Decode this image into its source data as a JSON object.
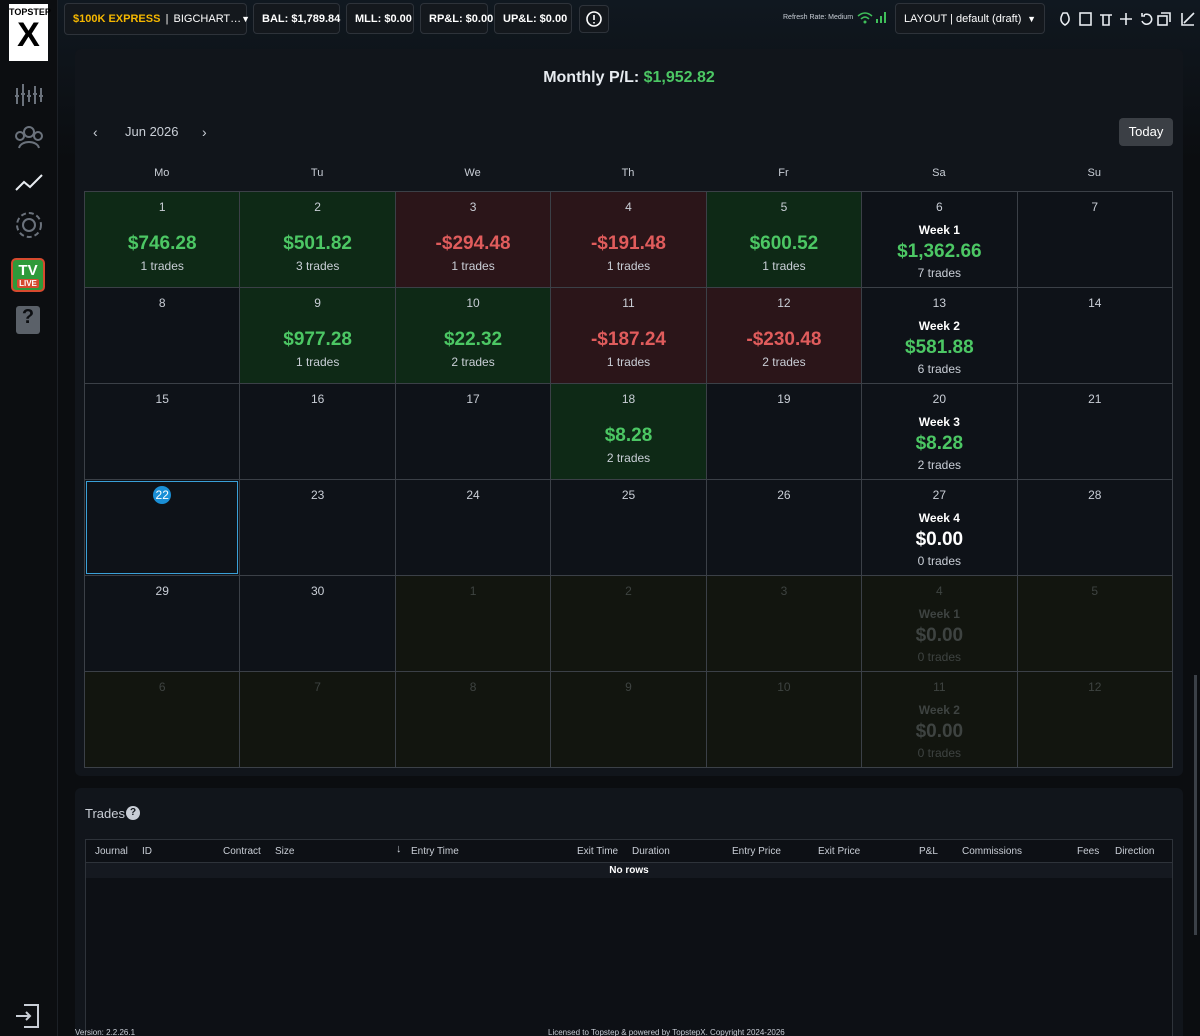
{
  "sidebar": {
    "logo_top": "TOPSTEP",
    "logo_mark": "X",
    "tv": "TV",
    "live": "LIVE"
  },
  "topbar": {
    "account_plan": "$100K EXPRESS",
    "account_name": "BIGCHART…",
    "stats": [
      "BAL: $1,789.84",
      "MLL: $0.00",
      "RP&L: $0.00",
      "UP&L: $0.00"
    ],
    "refresh": "Refresh Rate: Medium",
    "layout": "LAYOUT | default (draft)"
  },
  "calendar": {
    "title_label": "Monthly P/L:",
    "title_value": "$1,952.82",
    "month": "Jun 2026",
    "today_button": "Today",
    "weekdays": [
      "Mo",
      "Tu",
      "We",
      "Th",
      "Fr",
      "Sa",
      "Su"
    ],
    "weeks": [
      [
        {
          "day": "1",
          "pnl": "$746.28",
          "trades": "1 trades"
        },
        {
          "day": "2",
          "pnl": "$501.82",
          "trades": "3 trades"
        },
        {
          "day": "3",
          "pnl": "-$294.48",
          "trades": "1 trades"
        },
        {
          "day": "4",
          "pnl": "-$191.48",
          "trades": "1 trades"
        },
        {
          "day": "5",
          "pnl": "$600.52",
          "trades": "1 trades"
        },
        {
          "day": "6",
          "week": "Week 1",
          "pnl": "$1,362.66",
          "trades": "7 trades"
        },
        {
          "day": "7"
        }
      ],
      [
        {
          "day": "8"
        },
        {
          "day": "9",
          "pnl": "$977.28",
          "trades": "1 trades"
        },
        {
          "day": "10",
          "pnl": "$22.32",
          "trades": "2 trades"
        },
        {
          "day": "11",
          "pnl": "-$187.24",
          "trades": "1 trades"
        },
        {
          "day": "12",
          "pnl": "-$230.48",
          "trades": "2 trades"
        },
        {
          "day": "13",
          "week": "Week 2",
          "pnl": "$581.88",
          "trades": "6 trades"
        },
        {
          "day": "14"
        }
      ],
      [
        {
          "day": "15"
        },
        {
          "day": "16"
        },
        {
          "day": "17"
        },
        {
          "day": "18",
          "pnl": "$8.28",
          "trades": "2 trades"
        },
        {
          "day": "19"
        },
        {
          "day": "20",
          "week": "Week 3",
          "pnl": "$8.28",
          "trades": "2 trades"
        },
        {
          "day": "21"
        }
      ],
      [
        {
          "day": "22"
        },
        {
          "day": "23"
        },
        {
          "day": "24"
        },
        {
          "day": "25"
        },
        {
          "day": "26"
        },
        {
          "day": "27",
          "week": "Week 4",
          "pnl": "$0.00",
          "trades": "0 trades"
        },
        {
          "day": "28"
        }
      ],
      [
        {
          "day": "29"
        },
        {
          "day": "30"
        },
        {
          "day": "1"
        },
        {
          "day": "2"
        },
        {
          "day": "3"
        },
        {
          "day": "4",
          "week": "Week 1",
          "pnl": "$0.00",
          "trades": "0 trades"
        },
        {
          "day": "5"
        }
      ],
      [
        {
          "day": "6"
        },
        {
          "day": "7"
        },
        {
          "day": "8"
        },
        {
          "day": "9"
        },
        {
          "day": "10"
        },
        {
          "day": "11",
          "week": "Week 2",
          "pnl": "$0.00",
          "trades": "0 trades"
        },
        {
          "day": "12"
        }
      ]
    ]
  },
  "trades": {
    "title": "Trades",
    "columns": [
      "Journal",
      "ID",
      "Contract",
      "Size",
      "Entry Time",
      "Exit Time",
      "Duration",
      "Entry Price",
      "Exit Price",
      "P&L",
      "Commissions",
      "Fees",
      "Direction"
    ],
    "empty": "No rows"
  },
  "footer": {
    "version": "Version: 2.2.26.1",
    "license": "Licensed to Topstep & powered by TopstepX. Copyright 2024-2026"
  }
}
